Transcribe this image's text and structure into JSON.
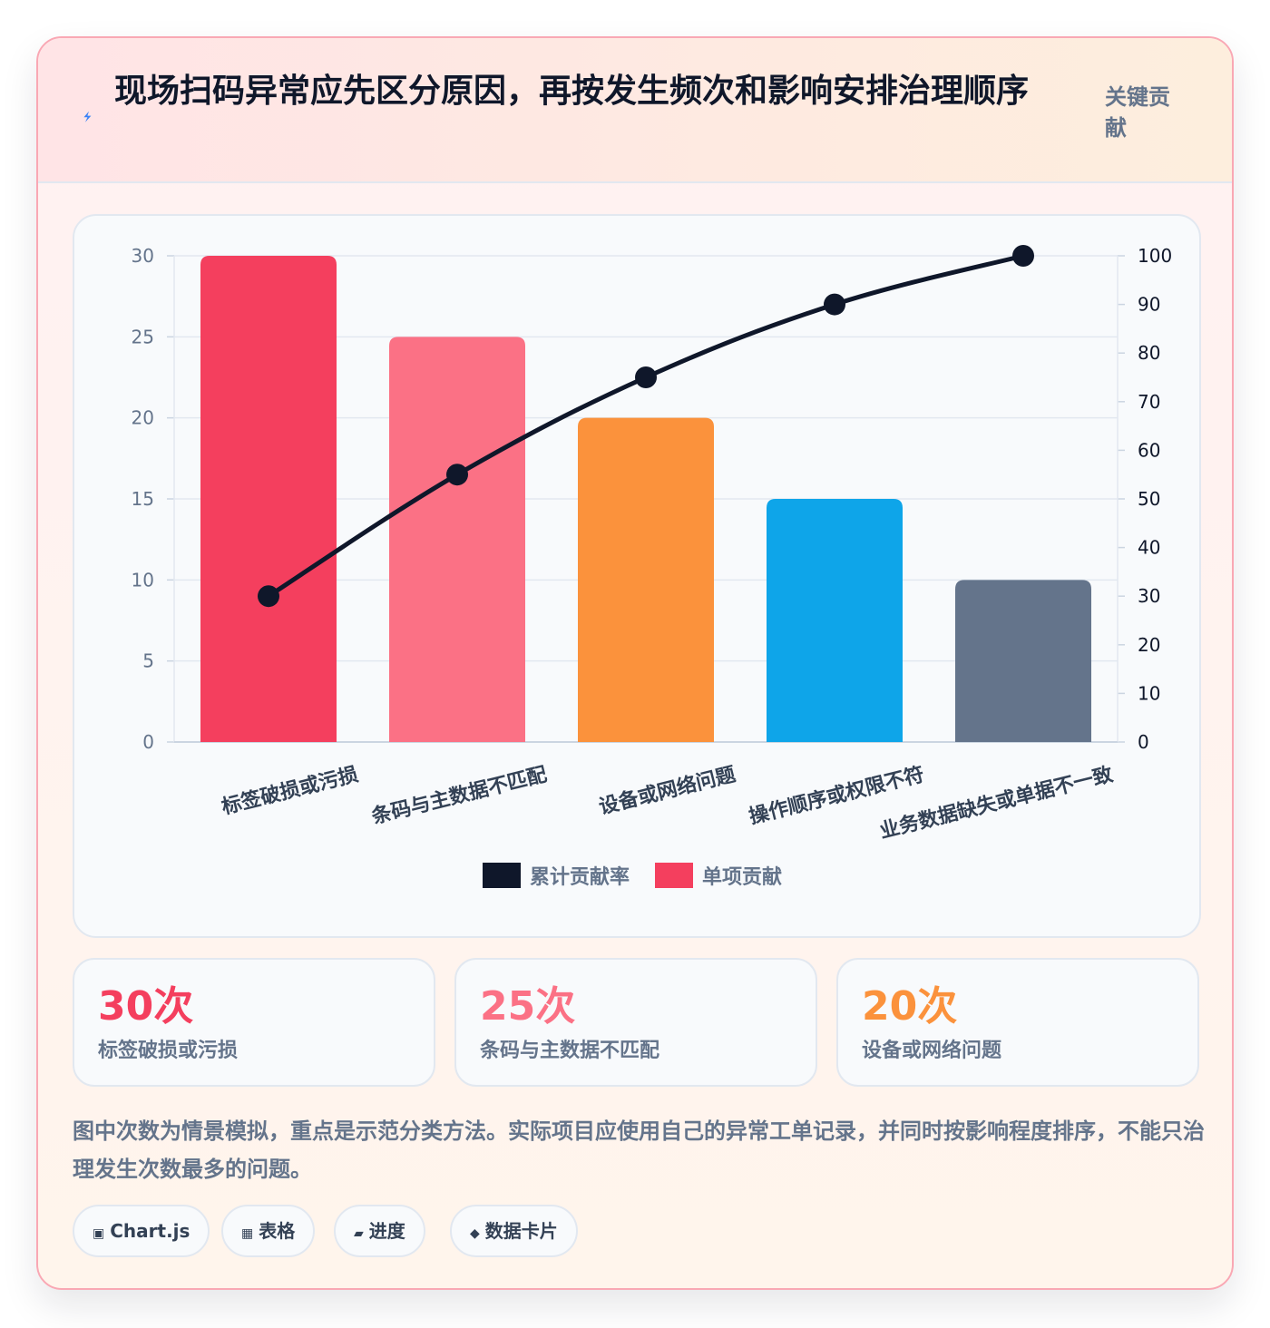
{
  "header": {
    "icon": "lightning-bolt-icon",
    "title": "现场扫码异常应先区分原因，再按发生频次和影响安排治理顺序",
    "tag": "关键贡献"
  },
  "chart_data": {
    "type": "bar",
    "categories": [
      "标签破损或污损",
      "条码与主数据不匹配",
      "设备或网络问题",
      "操作顺序或权限不符",
      "业务数据缺失或单据不一致"
    ],
    "series": [
      {
        "name": "单项贡献",
        "type": "bar",
        "values": [
          30,
          25,
          20,
          15,
          10
        ],
        "colors": [
          "#f43f5e",
          "#fb7185",
          "#fb923c",
          "#0ea5e9",
          "#64748b"
        ]
      },
      {
        "name": "累计贡献率",
        "type": "line",
        "values": [
          30,
          55,
          75,
          90,
          100
        ],
        "color": "#0f172a",
        "axis": "right"
      }
    ],
    "left_axis": {
      "ylim": [
        0,
        30
      ],
      "ticks": [
        "0",
        "5",
        "10",
        "15",
        "20",
        "25",
        "30"
      ]
    },
    "right_axis": {
      "ylim": [
        0,
        100
      ],
      "ticks": [
        "0",
        "10",
        "20",
        "30",
        "40",
        "50",
        "60",
        "70",
        "80",
        "90",
        "100"
      ]
    },
    "grid": true,
    "legend_position": "bottom",
    "legend": [
      {
        "label": "累计贡献率",
        "color": "#0f172a"
      },
      {
        "label": "单项贡献",
        "color": "#f43f5e"
      }
    ]
  },
  "stats": [
    {
      "value": "30次",
      "label": "标签破损或污损",
      "color": "#f43f5e"
    },
    {
      "value": "25次",
      "label": "条码与主数据不匹配",
      "color": "#fb7185"
    },
    {
      "value": "20次",
      "label": "设备或网络问题",
      "color": "#fb923c"
    }
  ],
  "note": "图中次数为情景模拟，重点是示范分类方法。实际项目应使用自己的异常工单记录，并同时按影响程度排序，不能只治理发生次数最多的问题。",
  "chips": [
    {
      "icon": "▣",
      "label": "Chart.js"
    },
    {
      "icon": "▦",
      "label": "表格"
    },
    {
      "icon": "▰",
      "label": "进度"
    },
    {
      "icon": "◆",
      "label": "数据卡片"
    }
  ]
}
